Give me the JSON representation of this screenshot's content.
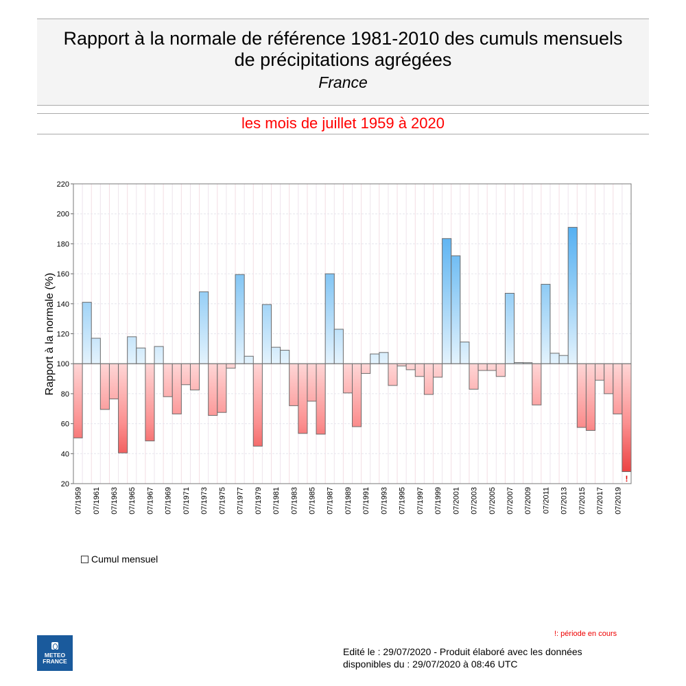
{
  "header": {
    "title_line1": "Rapport à la normale de référence 1981-2010 des cumuls mensuels",
    "title_line2": "de précipitations agrégées",
    "region": "France"
  },
  "subtitle": "les mois de juillet 1959 à 2020",
  "legend": {
    "label": "Cumul mensuel"
  },
  "footnote": "!: période en cours",
  "edit_line1": "Edité le : 29/07/2020 - Produit élaboré avec les données",
  "edit_line2": "disponibles du : 29/07/2020 à 08:46 UTC",
  "logo": {
    "text1": "METEO",
    "text2": "FRANCE"
  },
  "colors": {
    "above": "#3aa6f0",
    "below": "#e83030",
    "flag": "#e00000"
  },
  "chart_data": {
    "type": "bar",
    "ylabel": "Rapport à la normale (%)",
    "ylim": [
      20,
      220
    ],
    "yticks": [
      20,
      40,
      60,
      80,
      100,
      120,
      140,
      160,
      180,
      200,
      220
    ],
    "baseline": 100,
    "grid": true,
    "flag_marker": "!",
    "categories": [
      "07/1959",
      "07/1960",
      "07/1961",
      "07/1962",
      "07/1963",
      "07/1964",
      "07/1965",
      "07/1966",
      "07/1967",
      "07/1968",
      "07/1969",
      "07/1970",
      "07/1971",
      "07/1972",
      "07/1973",
      "07/1974",
      "07/1975",
      "07/1976",
      "07/1977",
      "07/1978",
      "07/1979",
      "07/1980",
      "07/1981",
      "07/1982",
      "07/1983",
      "07/1984",
      "07/1985",
      "07/1986",
      "07/1987",
      "07/1988",
      "07/1989",
      "07/1990",
      "07/1991",
      "07/1992",
      "07/1993",
      "07/1994",
      "07/1995",
      "07/1996",
      "07/1997",
      "07/1998",
      "07/1999",
      "07/2000",
      "07/2001",
      "07/2002",
      "07/2003",
      "07/2004",
      "07/2005",
      "07/2006",
      "07/2007",
      "07/2008",
      "07/2009",
      "07/2010",
      "07/2011",
      "07/2012",
      "07/2013",
      "07/2014",
      "07/2015",
      "07/2016",
      "07/2017",
      "07/2018",
      "07/2019",
      "07/2020"
    ],
    "values": [
      50.5,
      141,
      117,
      69.5,
      76.5,
      40.5,
      118,
      110.5,
      48.5,
      111.5,
      78,
      66.5,
      86,
      82.5,
      148,
      65.5,
      67.5,
      97,
      159.5,
      105,
      45,
      139.5,
      111,
      109,
      72,
      53.5,
      75,
      53,
      160,
      123,
      80.5,
      58,
      93.5,
      106.5,
      107.5,
      85.5,
      98.5,
      96,
      91.5,
      79.5,
      91,
      183.5,
      172,
      114.5,
      83,
      95.5,
      95.5,
      91.5,
      147,
      100.8,
      100.7,
      72.5,
      153,
      107,
      105.5,
      191,
      57.5,
      55.5,
      89,
      80,
      66.5,
      28
    ],
    "flagged": [
      "07/2020"
    ]
  }
}
